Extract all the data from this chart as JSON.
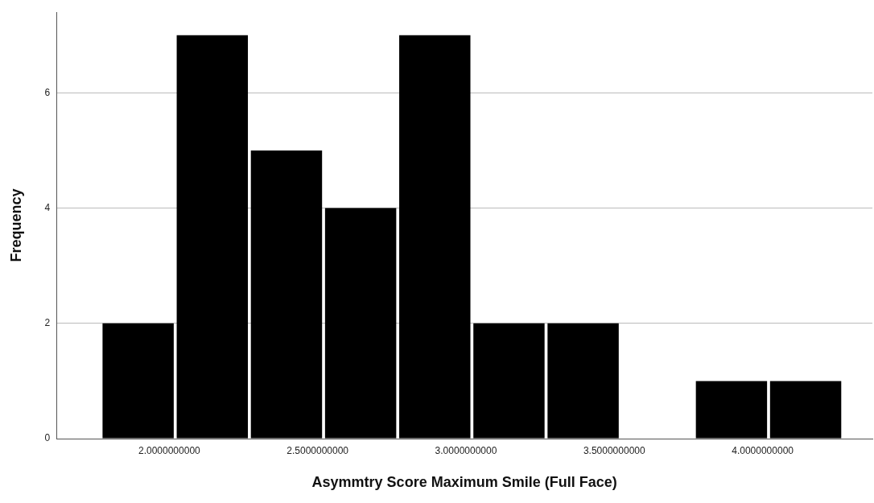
{
  "chart_data": {
    "type": "histogram",
    "xlabel": "Asymmtry Score Maximum Smile (Full Face)",
    "ylabel": "Frequency",
    "bins": [
      1.77,
      2.02,
      2.27,
      2.52,
      2.77,
      3.02,
      3.27,
      3.52,
      3.77,
      4.02,
      4.27
    ],
    "values": [
      2,
      7,
      5,
      4,
      7,
      2,
      2,
      0,
      1,
      1
    ],
    "color": "#000000",
    "xlim": [
      1.62,
      4.37
    ],
    "xticks": [
      {
        "value": 2,
        "label": "2.0000000000"
      },
      {
        "value": 2.5,
        "label": "2.5000000000"
      },
      {
        "value": 3,
        "label": "3.0000000000"
      },
      {
        "value": 3.5,
        "label": "3.5000000000"
      },
      {
        "value": 4,
        "label": "4.0000000000"
      }
    ],
    "ylim": [
      0,
      7.4
    ],
    "yticks": [
      0,
      2,
      4,
      6
    ],
    "grid": "y",
    "legend": false
  }
}
